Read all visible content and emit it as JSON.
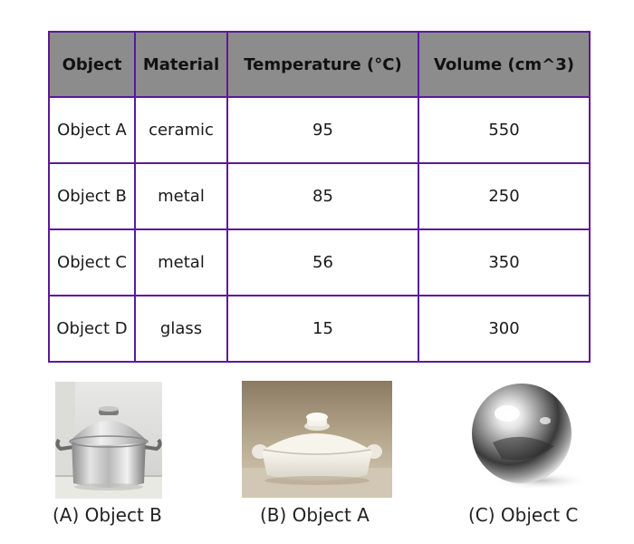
{
  "table": {
    "headers": [
      "Object",
      "Material",
      "Temperature (°C)",
      "Volume (cm^3)"
    ],
    "rows": [
      [
        "Object A",
        "ceramic",
        "95",
        "550"
      ],
      [
        "Object B",
        "metal",
        "85",
        "250"
      ],
      [
        "Object C",
        "metal",
        "56",
        "350"
      ],
      [
        "Object D",
        "glass",
        "15",
        "300"
      ]
    ]
  },
  "images": [
    {
      "icon": "steel-pot-photo",
      "caption": "(A) Object B"
    },
    {
      "icon": "ceramic-pot-photo",
      "caption": "(B) Object A"
    },
    {
      "icon": "metal-sphere-photo",
      "caption": "(C) Object C"
    }
  ],
  "colors": {
    "border": "#5b1a9a",
    "header_bg": "#8c8c8c"
  }
}
